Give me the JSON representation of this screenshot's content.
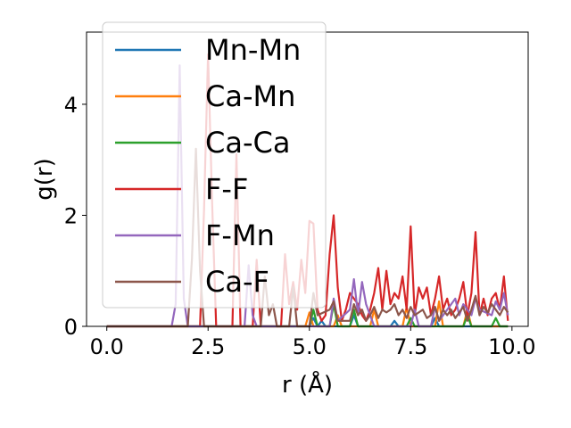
{
  "chart_data": {
    "type": "line",
    "title": "",
    "xlabel": "r (Å)",
    "ylabel": "g(r)",
    "xlim": [
      -0.5,
      10.4
    ],
    "ylim": [
      0,
      5.3
    ],
    "xticks": [
      0.0,
      2.5,
      5.0,
      7.5,
      10.0
    ],
    "xtick_labels": [
      "0.0",
      "2.5",
      "5.0",
      "7.5",
      "10.0"
    ],
    "yticks": [
      0,
      2,
      4
    ],
    "ytick_labels": [
      "0",
      "2",
      "4"
    ],
    "grid": false,
    "legend_position": "top-left",
    "series": [
      {
        "name": "Mn-Mn",
        "color": "#1f77b4",
        "x": [
          0.0,
          5.0,
          5.1,
          5.2,
          5.3,
          5.4,
          6.0,
          6.1,
          6.2,
          7.0,
          7.1,
          7.2,
          8.0,
          8.1,
          8.2,
          9.9
        ],
        "y": [
          0,
          0,
          0.15,
          0,
          0.1,
          0,
          0,
          0.2,
          0,
          0,
          0.1,
          0,
          0,
          0.15,
          0,
          0
        ]
      },
      {
        "name": "Ca-Mn",
        "color": "#ff7f0e",
        "x": [
          0.0,
          4.9,
          5.0,
          5.1,
          5.6,
          5.7,
          5.8,
          6.5,
          6.6,
          6.7,
          7.3,
          7.4,
          7.5,
          8.1,
          8.2,
          8.3,
          8.8,
          8.9,
          9.0,
          9.9
        ],
        "y": [
          0,
          0,
          0.25,
          0,
          0,
          0.2,
          0,
          0,
          0.3,
          0,
          0,
          0.35,
          0,
          0,
          0.45,
          0,
          0,
          0.3,
          0,
          0
        ]
      },
      {
        "name": "Ca-Ca",
        "color": "#2ca02c",
        "x": [
          0.0,
          5.0,
          5.1,
          5.2,
          5.5,
          5.6,
          5.7,
          6.0,
          6.1,
          6.2,
          7.4,
          7.5,
          7.6,
          8.8,
          8.9,
          9.0,
          9.5,
          9.6,
          9.7,
          9.9
        ],
        "y": [
          0,
          0,
          0.3,
          0,
          0,
          0.4,
          0,
          0,
          0.3,
          0,
          0,
          0.15,
          0,
          0,
          0.2,
          0,
          0,
          0.15,
          0,
          0
        ]
      },
      {
        "name": "F-F",
        "color": "#d62728",
        "x": [
          0.0,
          2.3,
          2.4,
          2.5,
          2.6,
          2.7,
          3.1,
          3.2,
          3.3,
          3.6,
          3.7,
          3.8,
          4.3,
          4.4,
          4.5,
          4.6,
          4.7,
          4.8,
          4.9,
          5.0,
          5.1,
          5.2,
          5.3,
          5.4,
          5.5,
          5.6,
          5.7,
          5.8,
          5.9,
          6.0,
          6.1,
          6.2,
          6.3,
          6.4,
          6.5,
          6.6,
          6.7,
          6.8,
          6.9,
          7.0,
          7.1,
          7.2,
          7.3,
          7.4,
          7.5,
          7.6,
          7.7,
          7.8,
          7.9,
          8.0,
          8.1,
          8.2,
          8.3,
          8.4,
          8.5,
          8.6,
          8.7,
          8.8,
          8.9,
          9.0,
          9.1,
          9.2,
          9.3,
          9.4,
          9.5,
          9.6,
          9.7,
          9.8,
          9.9
        ],
        "y": [
          0,
          0,
          2.1,
          4.9,
          2.2,
          0,
          0,
          3.1,
          0,
          0,
          1.2,
          0,
          0,
          1.3,
          0.4,
          0.8,
          0.3,
          1.2,
          0.6,
          1.9,
          1.85,
          0.3,
          0.1,
          0.2,
          1.3,
          2.0,
          0.7,
          0.1,
          0.3,
          0.6,
          0.5,
          0.4,
          0.2,
          0.1,
          0.3,
          0.6,
          1.05,
          0.3,
          1.0,
          0.4,
          0.6,
          0.5,
          0.9,
          0.3,
          1.8,
          0.2,
          0.7,
          0.5,
          0.7,
          0.2,
          0.5,
          0.9,
          0.3,
          0.5,
          0.2,
          0.3,
          0.5,
          0.8,
          0.2,
          0.6,
          1.7,
          0.2,
          0.5,
          0.2,
          0.5,
          0.6,
          0.3,
          0.9,
          0.1
        ]
      },
      {
        "name": "F-Mn",
        "color": "#9467bd",
        "x": [
          0.0,
          1.6,
          1.7,
          1.8,
          1.9,
          2.0,
          3.4,
          3.5,
          3.6,
          3.7,
          5.5,
          5.6,
          5.7,
          6.0,
          6.1,
          6.2,
          6.3,
          6.4,
          6.5,
          6.6,
          7.5,
          7.6,
          7.7,
          8.0,
          8.1,
          8.2,
          8.6,
          8.7,
          8.8,
          9.0,
          9.1,
          9.2,
          9.5,
          9.6,
          9.7,
          9.8,
          9.9
        ],
        "y": [
          0,
          0,
          0.4,
          4.7,
          0.5,
          0,
          0,
          1.1,
          0.2,
          0,
          0,
          0.5,
          0.1,
          0.3,
          0.85,
          0.2,
          0.8,
          0.4,
          0.2,
          0,
          0,
          0.3,
          0,
          0,
          0.35,
          0.1,
          0.5,
          0.2,
          0.4,
          0.2,
          0.5,
          0.3,
          0.2,
          0.45,
          0.3,
          0.6,
          0.2
        ]
      },
      {
        "name": "Ca-F",
        "color": "#8c564b",
        "x": [
          0.0,
          2.0,
          2.1,
          2.2,
          2.3,
          2.4,
          3.8,
          3.9,
          4.0,
          4.1,
          4.2,
          4.5,
          4.6,
          4.7,
          5.0,
          5.1,
          5.2,
          5.5,
          5.6,
          5.7,
          6.0,
          6.1,
          6.2,
          6.3,
          6.4,
          6.5,
          6.6,
          6.7,
          6.8,
          6.9,
          7.0,
          7.1,
          7.2,
          7.3,
          7.4,
          7.5,
          7.6,
          7.7,
          7.8,
          7.9,
          8.0,
          8.1,
          8.2,
          8.3,
          8.4,
          8.5,
          8.6,
          8.7,
          8.8,
          8.9,
          9.0,
          9.1,
          9.2,
          9.3,
          9.4,
          9.5,
          9.6,
          9.7,
          9.8,
          9.9
        ],
        "y": [
          0,
          0,
          1.2,
          3.2,
          1.0,
          0,
          0,
          0.9,
          0.2,
          0.4,
          0,
          0,
          0.7,
          0,
          0,
          0.6,
          0.2,
          0.3,
          0.45,
          0.1,
          0.1,
          0.4,
          0.2,
          0.3,
          0.1,
          0.2,
          0.35,
          0.15,
          0.3,
          0.25,
          0.3,
          0.4,
          0.2,
          0.3,
          0.15,
          0.35,
          0.2,
          0.25,
          0.3,
          0.15,
          0.2,
          0.35,
          0.1,
          0.3,
          0.2,
          0.3,
          0.15,
          0.25,
          0.35,
          0.1,
          0.3,
          0.55,
          0.2,
          0.35,
          0.25,
          0.4,
          0.3,
          0.2,
          0.35,
          0.25
        ]
      }
    ]
  }
}
